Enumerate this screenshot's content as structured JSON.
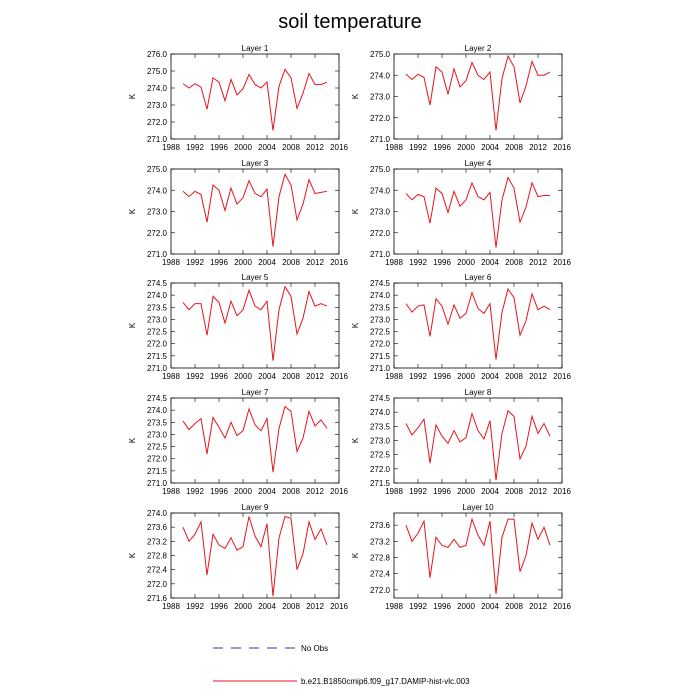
{
  "chart_data": {
    "type": "line",
    "title": "soil temperature",
    "series_color": "#e8141c",
    "noobs_color": "#3a3aa0",
    "x": [
      1990,
      1991,
      1992,
      1993,
      1994,
      1995,
      1996,
      1997,
      1998,
      1999,
      2000,
      2001,
      2002,
      2003,
      2004,
      2005,
      2006,
      2007,
      2008,
      2009,
      2010,
      2011,
      2012,
      2013,
      2014
    ],
    "xlim": [
      1988,
      2016
    ],
    "xticks": [
      1988,
      1992,
      1996,
      2000,
      2004,
      2008,
      2012,
      2016
    ],
    "legend": {
      "noobs_label": "No Obs",
      "series_label": "b.e21.B1850cmip6.f09_g17.DAMIP-hist-vlc.003"
    },
    "panels": [
      {
        "title": "Layer 1",
        "ylabel": "K",
        "ylim": [
          271.0,
          276.0
        ],
        "yticks": [
          271.0,
          272.0,
          273.0,
          274.0,
          275.0,
          276.0
        ],
        "ytick_labels": [
          "271.0",
          "272.0",
          "273.0",
          "274.0",
          "275.0",
          "276.0"
        ],
        "values": [
          274.25,
          274.0,
          274.25,
          274.05,
          272.75,
          274.6,
          274.35,
          273.25,
          274.5,
          273.6,
          273.95,
          274.8,
          274.2,
          274.0,
          274.35,
          271.5,
          274.1,
          275.1,
          274.6,
          272.8,
          273.7,
          274.85,
          274.2,
          274.2,
          274.35
        ]
      },
      {
        "title": "Layer 2",
        "ylabel": "K",
        "ylim": [
          271.0,
          275.0
        ],
        "yticks": [
          271.0,
          272.0,
          273.0,
          274.0,
          275.0
        ],
        "ytick_labels": [
          "271.0",
          "272.0",
          "273.0",
          "274.0",
          "275.0"
        ],
        "values": [
          274.05,
          273.8,
          274.05,
          273.9,
          272.6,
          274.4,
          274.15,
          273.1,
          274.3,
          273.45,
          273.75,
          274.6,
          274.0,
          273.8,
          274.15,
          271.4,
          273.85,
          274.9,
          274.4,
          272.7,
          273.5,
          274.65,
          274.0,
          274.0,
          274.15
        ]
      },
      {
        "title": "Layer 3",
        "ylabel": "K",
        "ylim": [
          271.0,
          275.0
        ],
        "yticks": [
          271.0,
          272.0,
          273.0,
          274.0,
          275.0
        ],
        "ytick_labels": [
          "271.0",
          "272.0",
          "273.0",
          "274.0",
          "275.0"
        ],
        "values": [
          273.95,
          273.7,
          273.95,
          273.8,
          272.5,
          274.25,
          274.0,
          273.05,
          274.1,
          273.35,
          273.65,
          274.45,
          273.85,
          273.7,
          274.05,
          271.35,
          273.7,
          274.75,
          274.25,
          272.6,
          273.35,
          274.5,
          273.85,
          273.9,
          273.95
        ]
      },
      {
        "title": "Layer 4",
        "ylabel": "K",
        "ylim": [
          271.0,
          275.0
        ],
        "yticks": [
          271.0,
          272.0,
          273.0,
          274.0,
          275.0
        ],
        "ytick_labels": [
          "271.0",
          "272.0",
          "273.0",
          "274.0",
          "275.0"
        ],
        "values": [
          273.85,
          273.55,
          273.8,
          273.7,
          272.45,
          274.1,
          273.85,
          272.95,
          273.95,
          273.25,
          273.55,
          274.35,
          273.7,
          273.55,
          273.9,
          271.3,
          273.55,
          274.6,
          274.1,
          272.5,
          273.2,
          274.35,
          273.7,
          273.75,
          273.75
        ]
      },
      {
        "title": "Layer 5",
        "ylabel": "K",
        "ylim": [
          271.0,
          274.5
        ],
        "yticks": [
          271.0,
          271.5,
          272.0,
          272.5,
          273.0,
          273.5,
          274.0,
          274.5
        ],
        "ytick_labels": [
          "271.0",
          "271.5",
          "272.0",
          "272.5",
          "273.0",
          "273.5",
          "274.0",
          "274.5"
        ],
        "values": [
          273.7,
          273.4,
          273.65,
          273.65,
          272.35,
          273.95,
          273.7,
          272.85,
          273.75,
          273.15,
          273.4,
          274.2,
          273.55,
          273.4,
          273.75,
          271.3,
          273.4,
          274.35,
          273.95,
          272.4,
          273.05,
          274.15,
          273.55,
          273.65,
          273.55
        ]
      },
      {
        "title": "Layer 6",
        "ylabel": "K",
        "ylim": [
          271.0,
          274.5
        ],
        "yticks": [
          271.0,
          271.5,
          272.0,
          272.5,
          273.0,
          273.5,
          274.0,
          274.5
        ],
        "ytick_labels": [
          "271.0",
          "271.5",
          "272.0",
          "272.5",
          "273.0",
          "273.5",
          "274.0",
          "274.5"
        ],
        "values": [
          273.65,
          273.3,
          273.55,
          273.6,
          272.3,
          273.85,
          273.55,
          272.8,
          273.6,
          273.05,
          273.25,
          274.1,
          273.45,
          273.25,
          273.65,
          271.35,
          273.3,
          274.25,
          273.9,
          272.35,
          272.95,
          274.05,
          273.4,
          273.55,
          273.4
        ]
      },
      {
        "title": "Layer 7",
        "ylabel": "K",
        "ylim": [
          271.0,
          274.5
        ],
        "yticks": [
          271.0,
          271.5,
          272.0,
          272.5,
          273.0,
          273.5,
          274.0,
          274.5
        ],
        "ytick_labels": [
          "271.0",
          "271.5",
          "272.0",
          "272.5",
          "273.0",
          "273.5",
          "274.0",
          "274.5"
        ],
        "values": [
          273.55,
          273.2,
          273.45,
          273.65,
          272.2,
          273.7,
          273.3,
          272.85,
          273.5,
          272.95,
          273.15,
          274.05,
          273.4,
          273.15,
          273.65,
          271.45,
          273.25,
          274.15,
          273.95,
          272.3,
          272.85,
          273.95,
          273.35,
          273.6,
          273.25
        ]
      },
      {
        "title": "Layer 8",
        "ylabel": "K",
        "ylim": [
          271.5,
          274.5
        ],
        "yticks": [
          271.5,
          272.0,
          272.5,
          273.0,
          273.5,
          274.0,
          274.5
        ],
        "ytick_labels": [
          "271.5",
          "272.0",
          "272.5",
          "273.0",
          "273.5",
          "274.0",
          "274.5"
        ],
        "values": [
          273.6,
          273.2,
          273.45,
          273.75,
          272.2,
          273.55,
          273.15,
          272.9,
          273.35,
          272.95,
          273.1,
          273.95,
          273.35,
          273.05,
          273.7,
          271.6,
          273.25,
          274.05,
          273.85,
          272.35,
          272.8,
          273.85,
          273.25,
          273.6,
          273.15
        ]
      },
      {
        "title": "Layer 9",
        "ylabel": "K",
        "ylim": [
          271.6,
          274.0
        ],
        "yticks": [
          271.6,
          272.0,
          272.4,
          272.8,
          273.2,
          273.6,
          274.0
        ],
        "ytick_labels": [
          "271.6",
          "272.0",
          "272.4",
          "272.8",
          "273.2",
          "273.6",
          "274.0"
        ],
        "values": [
          273.6,
          273.2,
          273.4,
          273.75,
          272.25,
          273.4,
          273.1,
          273.0,
          273.3,
          272.95,
          273.05,
          273.9,
          273.35,
          273.05,
          273.7,
          271.65,
          273.3,
          273.9,
          273.85,
          272.4,
          272.85,
          273.75,
          273.25,
          273.55,
          273.1
        ]
      },
      {
        "title": "Layer 10",
        "ylabel": "K",
        "ylim": [
          271.8,
          273.9
        ],
        "yticks": [
          272.0,
          272.4,
          272.8,
          273.2,
          273.6
        ],
        "ytick_labels": [
          "272.0",
          "272.4",
          "272.8",
          "273.2",
          "273.6"
        ],
        "values": [
          273.6,
          273.2,
          273.4,
          273.7,
          272.3,
          273.3,
          273.1,
          273.05,
          273.25,
          273.05,
          273.1,
          273.75,
          273.35,
          273.1,
          273.7,
          271.9,
          273.3,
          273.75,
          273.75,
          272.45,
          272.85,
          273.65,
          273.25,
          273.55,
          273.1
        ]
      }
    ]
  }
}
